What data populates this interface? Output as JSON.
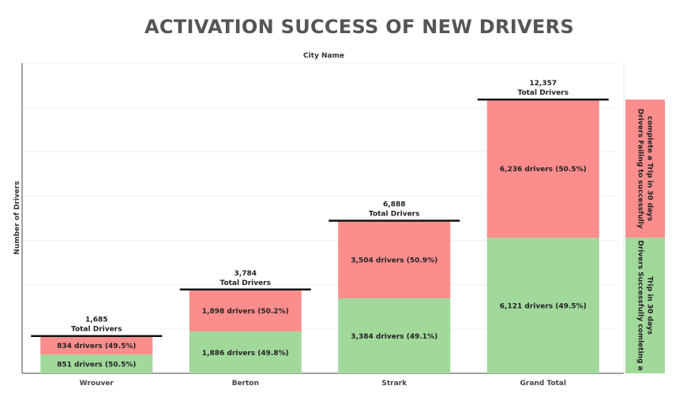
{
  "title": "ACTIVATION SUCCESS OF NEW DRIVERS",
  "subtitle": "City Name",
  "chart_data": {
    "type": "bar",
    "stacked": true,
    "ylabel": "Number of Drivers",
    "xlabel": "City Name",
    "ylim": [
      0,
      14000
    ],
    "grid": true,
    "categories": [
      "Wrouver",
      "Berton",
      "Strark",
      "Grand Total"
    ],
    "totals": [
      1685,
      3784,
      6888,
      12357
    ],
    "total_labels": [
      "1,685",
      "3,784",
      "6,888",
      "12,357"
    ],
    "total_caption": "Total Drivers",
    "series": [
      {
        "key": "success",
        "values": [
          851,
          1886,
          3384,
          6121
        ],
        "labels": [
          "851 drivers (50.5%)",
          "1,886 drivers (49.8%)",
          "3,384 drivers (49.1%)",
          "6,121 drivers (49.5%)"
        ],
        "color": "#a1d99b"
      },
      {
        "key": "failure",
        "values": [
          834,
          1898,
          3504,
          6236
        ],
        "labels": [
          "834 drivers (49.5%)",
          "1,898 drivers (50.2%)",
          "3,504 drivers (50.9%)",
          "6,236 drivers (50.5%)"
        ],
        "color": "#fc8d8d"
      }
    ],
    "legend": {
      "placement": "right",
      "items": [
        {
          "key": "failure",
          "label_lines": [
            "Drivers Failing to successfully",
            "complete a Trip in 30 days"
          ],
          "color": "#fc8d8d"
        },
        {
          "key": "success",
          "label_lines": [
            "Drivers Successfully comleting a",
            "Trip in 30 days"
          ],
          "color": "#a1d99b"
        }
      ]
    }
  }
}
